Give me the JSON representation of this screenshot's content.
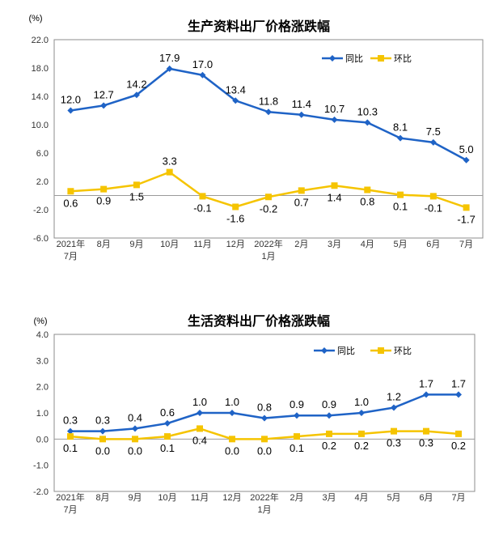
{
  "chart_data": [
    {
      "type": "line",
      "title": "生产资料出厂价格涨跌幅",
      "ylabel": "(%)",
      "ylim": [
        -6.0,
        22.0
      ],
      "yticks": [
        "22.0",
        "18.0",
        "14.0",
        "10.0",
        "6.0",
        "2.0",
        "-2.0",
        "-6.0"
      ],
      "categories": [
        [
          "2021年",
          "7月"
        ],
        [
          "8月"
        ],
        [
          "9月"
        ],
        [
          "10月"
        ],
        [
          "11月"
        ],
        [
          "12月"
        ],
        [
          "2022年",
          "1月"
        ],
        [
          "2月"
        ],
        [
          "3月"
        ],
        [
          "4月"
        ],
        [
          "5月"
        ],
        [
          "6月"
        ],
        [
          "7月"
        ]
      ],
      "series": [
        {
          "name": "同比",
          "color": "#1F63C6",
          "marker": "diamond",
          "values": [
            12.0,
            12.7,
            14.2,
            17.9,
            17.0,
            13.4,
            11.8,
            11.4,
            10.7,
            10.3,
            8.1,
            7.5,
            5.0
          ],
          "labels": [
            "12.0",
            "12.7",
            "14.2",
            "17.9",
            "17.0",
            "13.4",
            "11.8",
            "11.4",
            "10.7",
            "10.3",
            "8.1",
            "7.5",
            "5.0"
          ]
        },
        {
          "name": "环比",
          "color": "#F5C400",
          "marker": "square",
          "values": [
            0.6,
            0.9,
            1.5,
            3.3,
            -0.1,
            -1.6,
            -0.2,
            0.7,
            1.4,
            0.8,
            0.1,
            -0.1,
            -1.7
          ],
          "labels": [
            "0.6",
            "0.9",
            "1.5",
            "3.3",
            "-0.1",
            "-1.6",
            "-0.2",
            "0.7",
            "1.4",
            "0.8",
            "0.1",
            "-0.1",
            "-1.7"
          ]
        }
      ]
    },
    {
      "type": "line",
      "title": "生活资料出厂价格涨跌幅",
      "ylabel": "(%)",
      "ylim": [
        -2.0,
        4.0
      ],
      "yticks": [
        "4.0",
        "3.0",
        "2.0",
        "1.0",
        "0.0",
        "-1.0",
        "-2.0"
      ],
      "categories": [
        [
          "2021年",
          "7月"
        ],
        [
          "8月"
        ],
        [
          "9月"
        ],
        [
          "10月"
        ],
        [
          "11月"
        ],
        [
          "12月"
        ],
        [
          "2022年",
          "1月"
        ],
        [
          "2月"
        ],
        [
          "3月"
        ],
        [
          "4月"
        ],
        [
          "5月"
        ],
        [
          "6月"
        ],
        [
          "7月"
        ]
      ],
      "series": [
        {
          "name": "同比",
          "color": "#1F63C6",
          "marker": "diamond",
          "values": [
            0.3,
            0.3,
            0.4,
            0.6,
            1.0,
            1.0,
            0.8,
            0.9,
            0.9,
            1.0,
            1.2,
            1.7,
            1.7
          ],
          "labels": [
            "0.3",
            "0.3",
            "0.4",
            "0.6",
            "1.0",
            "1.0",
            "0.8",
            "0.9",
            "0.9",
            "1.0",
            "1.2",
            "1.7",
            "1.7"
          ]
        },
        {
          "name": "环比",
          "color": "#F5C400",
          "marker": "square",
          "values": [
            0.1,
            0.0,
            0.0,
            0.1,
            0.4,
            0.0,
            0.0,
            0.1,
            0.2,
            0.2,
            0.3,
            0.3,
            0.2
          ],
          "labels": [
            "0.1",
            "0.0",
            "0.0",
            "0.1",
            "0.4",
            "0.0",
            "0.0",
            "0.1",
            "0.2",
            "0.2",
            "0.3",
            "0.3",
            "0.2"
          ]
        }
      ]
    }
  ]
}
